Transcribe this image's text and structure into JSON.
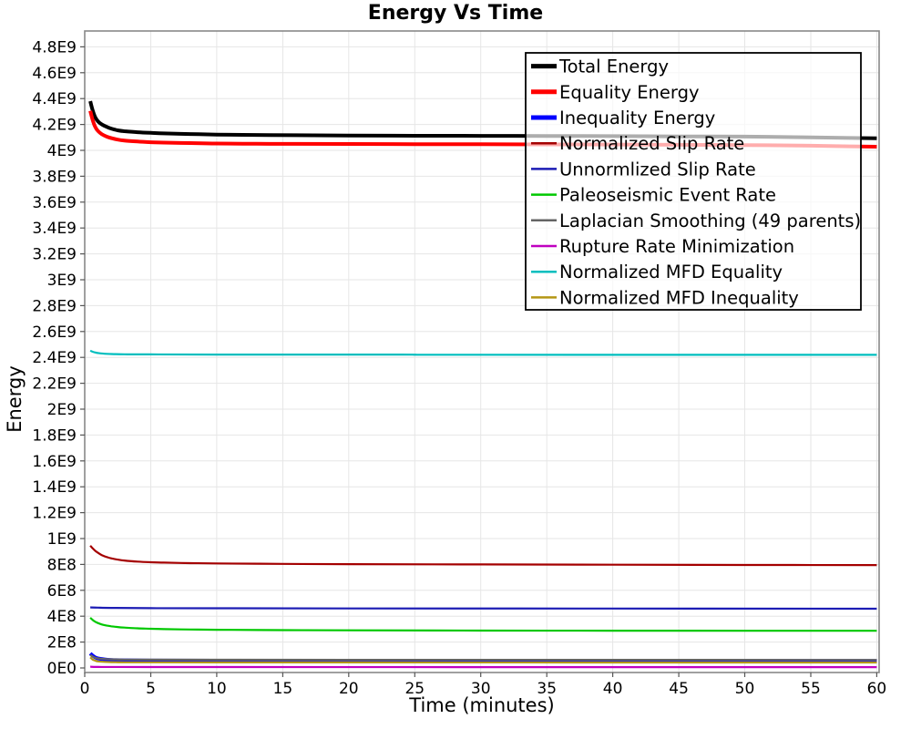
{
  "chart_data": {
    "type": "line",
    "title": "Energy Vs Time",
    "xlabel": "Time (minutes)",
    "ylabel": "Energy",
    "xlim": [
      0,
      60.2
    ],
    "ylim": [
      0,
      4920000000
    ],
    "grid": true,
    "grid_color": "#e6e6e6",
    "frame_color": "#888888",
    "x_ticks": [
      0,
      5,
      10,
      15,
      20,
      25,
      30,
      35,
      40,
      45,
      50,
      55,
      60
    ],
    "y_tick_step": 200000000,
    "y_tick_labels": [
      "0E0",
      "2E8",
      "4E8",
      "6E8",
      "8E8",
      "1E9",
      "1.2E9",
      "1.4E9",
      "1.6E9",
      "1.8E9",
      "2E9",
      "2.2E9",
      "2.4E9",
      "2.6E9",
      "2.8E9",
      "3E9",
      "3.2E9",
      "3.4E9",
      "3.6E9",
      "3.8E9",
      "4E9",
      "4.2E9",
      "4.4E9",
      "4.6E9",
      "4.8E9"
    ],
    "y_unit_multiplier": 1000000000.0,
    "series": [
      {
        "name": "Total Energy",
        "slug": "total-energy",
        "color": "#000000",
        "width": 4,
        "points": [
          [
            0.42,
            4.38
          ],
          [
            0.6,
            4.31
          ],
          [
            0.8,
            4.255
          ],
          [
            1,
            4.225
          ],
          [
            1.3,
            4.2
          ],
          [
            1.7,
            4.18
          ],
          [
            2,
            4.168
          ],
          [
            2.5,
            4.155
          ],
          [
            3,
            4.148
          ],
          [
            4,
            4.14
          ],
          [
            5,
            4.135
          ],
          [
            6,
            4.131
          ],
          [
            8,
            4.126
          ],
          [
            10,
            4.122
          ],
          [
            13,
            4.119
          ],
          [
            16,
            4.117
          ],
          [
            20,
            4.115
          ],
          [
            25,
            4.113
          ],
          [
            30,
            4.112
          ],
          [
            35,
            4.111
          ],
          [
            40,
            4.11
          ],
          [
            45,
            4.108
          ],
          [
            50,
            4.106
          ],
          [
            55,
            4.101
          ],
          [
            58,
            4.096
          ],
          [
            60,
            4.093
          ]
        ]
      },
      {
        "name": "Equality Energy",
        "slug": "equality-energy",
        "color": "#ff0000",
        "width": 4,
        "points": [
          [
            0.42,
            4.305
          ],
          [
            0.6,
            4.235
          ],
          [
            0.8,
            4.18
          ],
          [
            1,
            4.15
          ],
          [
            1.3,
            4.125
          ],
          [
            1.7,
            4.105
          ],
          [
            2,
            4.095
          ],
          [
            2.5,
            4.083
          ],
          [
            3,
            4.076
          ],
          [
            4,
            4.068
          ],
          [
            5,
            4.063
          ],
          [
            6,
            4.06
          ],
          [
            8,
            4.056
          ],
          [
            10,
            4.053
          ],
          [
            13,
            4.051
          ],
          [
            16,
            4.05
          ],
          [
            20,
            4.049
          ],
          [
            25,
            4.048
          ],
          [
            30,
            4.047
          ],
          [
            35,
            4.046
          ],
          [
            40,
            4.045
          ],
          [
            45,
            4.043
          ],
          [
            50,
            4.041
          ],
          [
            55,
            4.036
          ],
          [
            58,
            4.031
          ],
          [
            60,
            4.028
          ]
        ]
      },
      {
        "name": "Inequality Energy",
        "slug": "inequality-energy",
        "color": "#0000ff",
        "width": 4,
        "points": [
          [
            0.42,
            0.112
          ],
          [
            0.6,
            0.095
          ],
          [
            0.8,
            0.082
          ],
          [
            1,
            0.074
          ],
          [
            1.5,
            0.066
          ],
          [
            2,
            0.062
          ],
          [
            3,
            0.059
          ],
          [
            5,
            0.057
          ],
          [
            10,
            0.056
          ],
          [
            20,
            0.0555
          ],
          [
            40,
            0.055
          ],
          [
            60,
            0.055
          ]
        ]
      },
      {
        "name": "Normalized Slip Rate",
        "slug": "normalized-slip-rate",
        "color": "#a40000",
        "width": 2.2,
        "points": [
          [
            0.42,
            0.945
          ],
          [
            0.6,
            0.925
          ],
          [
            0.8,
            0.905
          ],
          [
            1,
            0.89
          ],
          [
            1.3,
            0.872
          ],
          [
            1.7,
            0.856
          ],
          [
            2,
            0.847
          ],
          [
            2.5,
            0.837
          ],
          [
            3,
            0.83
          ],
          [
            4,
            0.822
          ],
          [
            5,
            0.817
          ],
          [
            6,
            0.814
          ],
          [
            8,
            0.81
          ],
          [
            10,
            0.808
          ],
          [
            15,
            0.804
          ],
          [
            20,
            0.802
          ],
          [
            30,
            0.8
          ],
          [
            40,
            0.798
          ],
          [
            50,
            0.796
          ],
          [
            60,
            0.795
          ]
        ]
      },
      {
        "name": "Unnormlized Slip Rate",
        "slug": "unnormlized-slip-rate",
        "color": "#1c1cb4",
        "width": 2.2,
        "points": [
          [
            0.42,
            0.468
          ],
          [
            1,
            0.466
          ],
          [
            2,
            0.464
          ],
          [
            5,
            0.462
          ],
          [
            10,
            0.461
          ],
          [
            20,
            0.46
          ],
          [
            40,
            0.459
          ],
          [
            60,
            0.458
          ]
        ]
      },
      {
        "name": "Paleoseismic Event Rate",
        "slug": "paleoseismic-event-rate",
        "color": "#00c800",
        "width": 2.2,
        "points": [
          [
            0.42,
            0.388
          ],
          [
            0.6,
            0.371
          ],
          [
            0.8,
            0.357
          ],
          [
            1,
            0.347
          ],
          [
            1.3,
            0.336
          ],
          [
            1.7,
            0.327
          ],
          [
            2,
            0.322
          ],
          [
            2.5,
            0.316
          ],
          [
            3,
            0.312
          ],
          [
            4,
            0.306
          ],
          [
            5,
            0.303
          ],
          [
            6,
            0.3
          ],
          [
            8,
            0.297
          ],
          [
            10,
            0.295
          ],
          [
            15,
            0.292
          ],
          [
            20,
            0.291
          ],
          [
            30,
            0.289
          ],
          [
            40,
            0.288
          ],
          [
            50,
            0.2875
          ],
          [
            60,
            0.287
          ]
        ]
      },
      {
        "name": "Laplacian Smoothing (49 parents)",
        "slug": "laplacian-smoothing",
        "color": "#646464",
        "width": 2.2,
        "points": [
          [
            0.42,
            0.1
          ],
          [
            0.6,
            0.088
          ],
          [
            0.8,
            0.079
          ],
          [
            1,
            0.074
          ],
          [
            1.5,
            0.069
          ],
          [
            2,
            0.067
          ],
          [
            3,
            0.065
          ],
          [
            5,
            0.064
          ],
          [
            10,
            0.0635
          ],
          [
            20,
            0.063
          ],
          [
            40,
            0.0625
          ],
          [
            60,
            0.062
          ]
        ]
      },
      {
        "name": "Rupture Rate Minimization",
        "slug": "rupture-rate-minimization",
        "color": "#c000c0",
        "width": 2.2,
        "points": [
          [
            0.42,
            0.01
          ],
          [
            1,
            0.008
          ],
          [
            5,
            0.007
          ],
          [
            30,
            0.0065
          ],
          [
            60,
            0.006
          ]
        ]
      },
      {
        "name": "Normalized MFD Equality",
        "slug": "normalized-mfd-equality",
        "color": "#00bebe",
        "width": 2.2,
        "points": [
          [
            0.42,
            2.452
          ],
          [
            0.6,
            2.444
          ],
          [
            0.8,
            2.438
          ],
          [
            1,
            2.434
          ],
          [
            1.5,
            2.428
          ],
          [
            2,
            2.426
          ],
          [
            3,
            2.424
          ],
          [
            5,
            2.423
          ],
          [
            10,
            2.422
          ],
          [
            24,
            2.4215
          ],
          [
            26,
            2.4205
          ],
          [
            40,
            2.42
          ],
          [
            60,
            2.42
          ]
        ]
      },
      {
        "name": "Normalized MFD Inequality",
        "slug": "normalized-mfd-inequality",
        "color": "#b49614",
        "width": 2.2,
        "points": [
          [
            0.42,
            0.082
          ],
          [
            0.6,
            0.065
          ],
          [
            0.8,
            0.056
          ],
          [
            1,
            0.051
          ],
          [
            1.5,
            0.047
          ],
          [
            2,
            0.045
          ],
          [
            3,
            0.044
          ],
          [
            5,
            0.0435
          ],
          [
            10,
            0.043
          ],
          [
            20,
            0.0428
          ],
          [
            40,
            0.0425
          ],
          [
            60,
            0.042
          ]
        ]
      }
    ],
    "legend": {
      "position": "top-right-inside",
      "border_color": "#000000",
      "background_color": "#ffffff",
      "background_opacity": 0.68
    }
  }
}
